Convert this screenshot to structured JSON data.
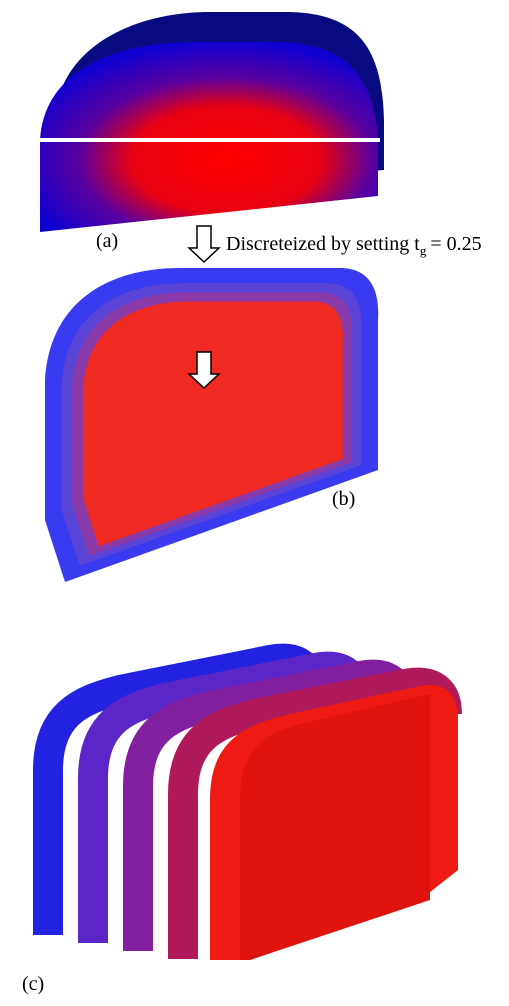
{
  "labels": {
    "a": "(a)",
    "b": "(b)",
    "c": "(c)"
  },
  "arrow_note": {
    "text": "Discreteized by setting t",
    "subscript": "g",
    "value": "= 0.25"
  }
}
